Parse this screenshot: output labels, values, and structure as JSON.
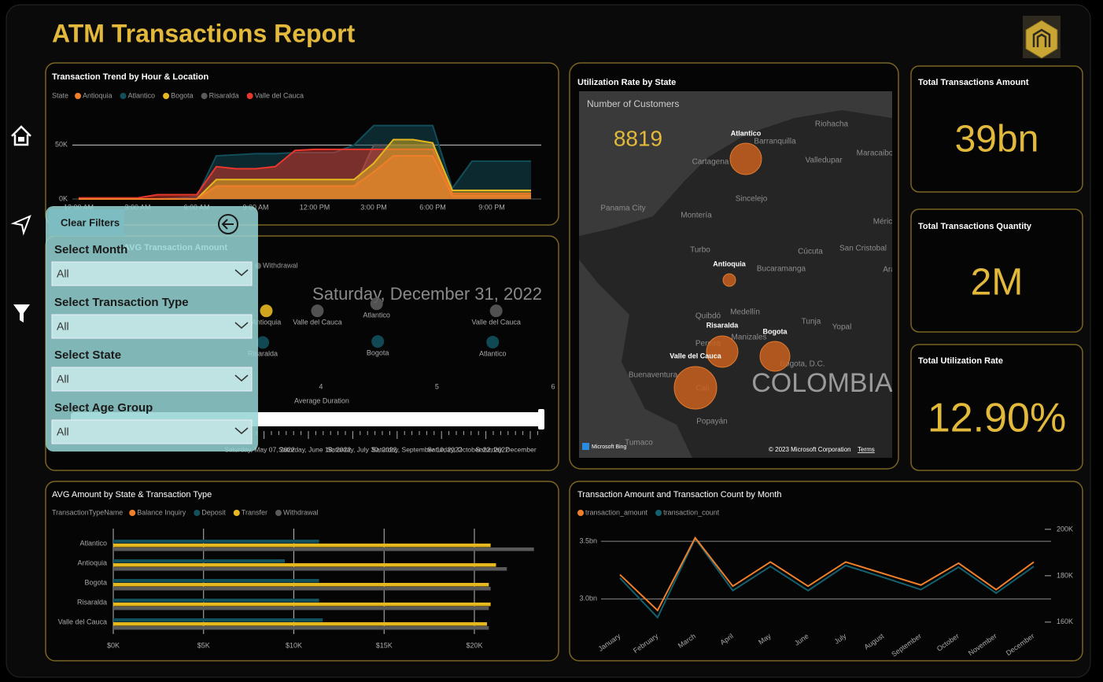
{
  "header": {
    "title": "ATM Transactions Report"
  },
  "filters": {
    "clear": "Clear Filters",
    "items": [
      {
        "label": "Select Month",
        "value": "All"
      },
      {
        "label": "Select Transaction Type",
        "value": "All"
      },
      {
        "label": "Select State",
        "value": "All"
      },
      {
        "label": "Select Age Group",
        "value": "All"
      }
    ]
  },
  "kpis": [
    {
      "title": "Total Transactions Amount",
      "value": "39bn"
    },
    {
      "title": "Total Transactions Quantity",
      "value": "2M"
    },
    {
      "title": "Total Utilization Rate",
      "value": "12.90%"
    }
  ],
  "map": {
    "title": "Utilization Rate by State",
    "card_label": "Number of Customers",
    "card_value": 8819,
    "bubbles": [
      "Atlantico",
      "Antioquia",
      "Risaralda",
      "Bogota",
      "Valle del Cauca"
    ],
    "places": [
      "Riohacha",
      "Barranquilla",
      "Cartagena",
      "Valledupar",
      "Maracaibo",
      "Sincelejo",
      "Panama City",
      "Montería",
      "Méric",
      "Turbo",
      "Cúcuta",
      "San Cristobal",
      "Bucaramanga",
      "Ara",
      "Quibdó",
      "Medellín",
      "Tunja",
      "Yopal",
      "Manizales",
      "Pereira",
      "Bogota, D.C.",
      "Buenaventura",
      "Cali",
      "Popayán",
      "Tumaco"
    ],
    "country": "COLOMBIA",
    "attribution": "Microsoft Bing",
    "copyright": "© 2023 Microsoft Corporation",
    "terms": "Terms"
  },
  "chart_data": [
    {
      "type": "area",
      "title": "Transaction Trend by Hour & Location",
      "legend_title": "State",
      "categories": [
        "12:00 AM",
        null,
        null,
        "3:00 AM",
        null,
        null,
        "6:00 AM",
        null,
        null,
        "9:00 AM",
        null,
        null,
        "12:00 PM",
        null,
        null,
        "3:00 PM",
        null,
        null,
        "6:00 PM",
        null,
        null,
        "9:00 PM",
        null,
        null
      ],
      "ylim": [
        0,
        75000
      ],
      "yticks": [
        {
          "value": 0,
          "label": "0K"
        },
        {
          "value": 50000,
          "label": "50K"
        }
      ],
      "grid": true,
      "series": [
        {
          "name": "Antioquia",
          "color": "#f07f2a",
          "values": [
            0,
            0,
            0,
            0,
            0,
            0,
            0,
            12000,
            12000,
            12000,
            12000,
            12000,
            12000,
            12000,
            12000,
            25000,
            40000,
            40000,
            40000,
            3000,
            3000,
            3000,
            3000,
            3000
          ]
        },
        {
          "name": "Atlantico",
          "color": "#124d5a",
          "values": [
            0,
            0,
            0,
            0,
            0,
            1000,
            2000,
            40000,
            41000,
            42000,
            42000,
            43000,
            43000,
            43000,
            50000,
            68000,
            68000,
            68000,
            68000,
            10000,
            35000,
            35000,
            35000,
            35000
          ]
        },
        {
          "name": "Bogota",
          "color": "#e6b820",
          "values": [
            0,
            0,
            0,
            0,
            0,
            0,
            0,
            18000,
            18000,
            18000,
            18000,
            18000,
            18000,
            18000,
            18000,
            33000,
            55000,
            55000,
            52000,
            8000,
            8000,
            8000,
            8000,
            8000
          ]
        },
        {
          "name": "Risaralda",
          "color": "#5a5a5a",
          "values": [
            0,
            0,
            0,
            0,
            0,
            0,
            0,
            10000,
            10000,
            10000,
            10000,
            10000,
            10000,
            10000,
            10000,
            50000,
            50000,
            50000,
            50000,
            5000,
            5000,
            5000,
            5000,
            5000
          ]
        },
        {
          "name": "Valle del Cauca",
          "color": "#e8372c",
          "values": [
            1000,
            1000,
            1000,
            1000,
            4000,
            4000,
            4000,
            30000,
            28000,
            28000,
            30000,
            45000,
            46000,
            46000,
            46000,
            46000,
            46000,
            46000,
            46000,
            5000,
            5000,
            5000,
            5000,
            5000
          ]
        }
      ]
    },
    {
      "type": "scatter",
      "title": "AVG Transaction Amount",
      "x_label": "Average Duration",
      "play_label": "Saturday, December 31, 2022",
      "play_ticks": [
        "Saturday, May 07, 2022",
        "Saturday, June 18, 2022",
        "Saturday, July 30, 2022",
        "Saturday, September 10, 2022",
        "Saturday, October 22, 2022",
        "Saturday, December"
      ],
      "xlim": [
        1.88,
        6
      ],
      "xticks": [
        4,
        5,
        6
      ],
      "ylim": [
        0,
        36000
      ],
      "series": [
        {
          "name": "Balance Inquiry",
          "color": "#f07f2a",
          "x": [],
          "values": [],
          "labels": []
        },
        {
          "name": "Deposit",
          "color": "#12505c",
          "x": [
            3.5,
            4.49,
            5.48
          ],
          "values": [
            10900,
            11200,
            11000
          ],
          "labels": [
            "Risaralda",
            "Bogota",
            "Atlantico"
          ]
        },
        {
          "name": "Transfer",
          "color": "#e6b820",
          "x": [
            3.53
          ],
          "values": [
            20300
          ],
          "labels": [
            "Antioquia"
          ]
        },
        {
          "name": "Withdrawal",
          "color": "#5a5a5a",
          "x": [
            3.97,
            4.48,
            5.51
          ],
          "values": [
            20300,
            22400,
            20300
          ],
          "labels": [
            "Valle del Cauca",
            "Atlantico",
            "Valle del Cauca"
          ]
        }
      ]
    },
    {
      "type": "hbar",
      "title": "AVG Amount by State & Transaction Type",
      "legend_title": "TransactionTypeName",
      "categories": [
        "Atlantico",
        "Antioquia",
        "Bogota",
        "Risaralda",
        "Valle del Cauca"
      ],
      "xlim": [
        0,
        23400
      ],
      "xticks": [
        {
          "value": 0,
          "label": "$0K"
        },
        {
          "value": 5000,
          "label": "$5K"
        },
        {
          "value": 10000,
          "label": "$10K"
        },
        {
          "value": 15000,
          "label": "$15K"
        },
        {
          "value": 20000,
          "label": "$20K"
        }
      ],
      "grid": true,
      "series": [
        {
          "name": "Balance Inquiry",
          "color": "#f07f2a",
          "values": [
            0,
            0,
            0,
            0,
            0
          ]
        },
        {
          "name": "Deposit",
          "color": "#12505c",
          "values": [
            11400,
            9500,
            11400,
            11400,
            11600
          ]
        },
        {
          "name": "Transfer",
          "color": "#e6b820",
          "values": [
            20900,
            21200,
            20800,
            20900,
            20700
          ]
        },
        {
          "name": "Withdrawal",
          "color": "#5a5a5a",
          "values": [
            23300,
            21800,
            20900,
            20800,
            20800
          ]
        }
      ]
    },
    {
      "type": "line",
      "title": "Transaction Amount and Transaction Count by Month",
      "categories": [
        "January",
        "February",
        "March",
        "April",
        "May",
        "June",
        "July",
        "August",
        "September",
        "October",
        "November",
        "December"
      ],
      "ylim": [
        2770000000,
        3610000000
      ],
      "yticks": [
        {
          "value": 3000000000,
          "label": "3.0bn"
        },
        {
          "value": 3500000000,
          "label": "3.5bn"
        }
      ],
      "y2lim": [
        158600,
        200300
      ],
      "y2ticks": [
        {
          "value": 160000,
          "label": "160K"
        },
        {
          "value": 180000,
          "label": "180K"
        },
        {
          "value": 200000,
          "label": "200K"
        }
      ],
      "grid": true,
      "series": [
        {
          "name": "transaction_amount",
          "color": "#f07f2a",
          "values": [
            3210000000,
            2900000000,
            3530000000,
            3110000000,
            3320000000,
            3110000000,
            3320000000,
            3220000000,
            3120000000,
            3310000000,
            3080000000,
            3320000000
          ]
        },
        {
          "name": "transaction_count",
          "color": "#13606e",
          "axis": "y2",
          "values": [
            179000,
            162000,
            196000,
            173600,
            184000,
            173600,
            184400,
            179300,
            174000,
            183700,
            172500,
            184000
          ]
        }
      ]
    }
  ]
}
